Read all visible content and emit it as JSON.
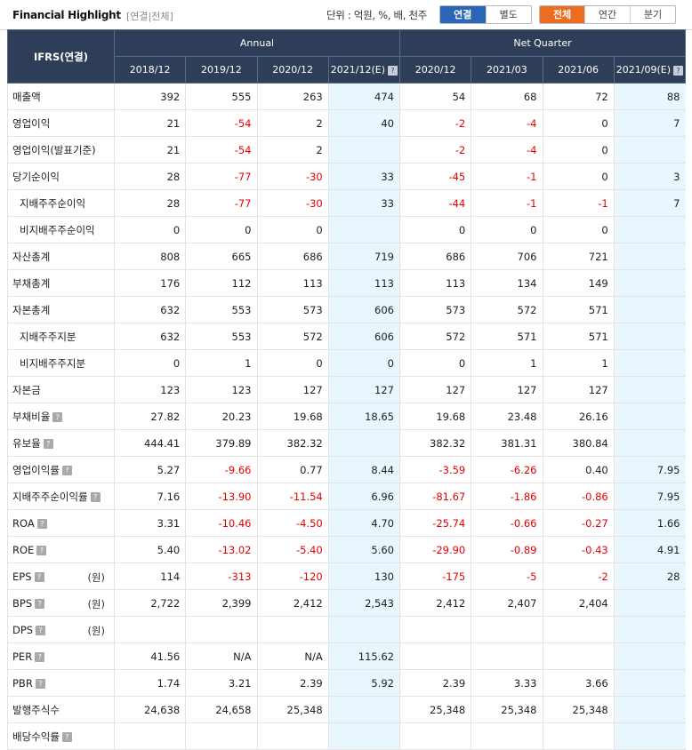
{
  "toolbar": {
    "title": "Financial Highlight",
    "subtitle": "[연결|전체]",
    "unit_label": "단위 : 억원, %, 배, 천주",
    "consol_options": [
      "연결",
      "별도"
    ],
    "period_options": [
      "전체",
      "연간",
      "분기"
    ]
  },
  "header": {
    "ifrs": "IFRS(연결)",
    "annual": "Annual",
    "quarter": "Net Quarter",
    "columns": [
      "2018/12",
      "2019/12",
      "2020/12",
      "2021/12(E)",
      "2020/12",
      "2021/03",
      "2021/06",
      "2021/09(E)"
    ],
    "help_icon": "?"
  },
  "rows": [
    {
      "label": "매출액",
      "values": [
        "392",
        "555",
        "263",
        "474",
        "54",
        "68",
        "72",
        "88"
      ]
    },
    {
      "label": "영업이익",
      "values": [
        "21",
        "-54",
        "2",
        "40",
        "-2",
        "-4",
        "0",
        "7"
      ]
    },
    {
      "label": "영업이익(발표기준)",
      "values": [
        "21",
        "-54",
        "2",
        "",
        "-2",
        "-4",
        "0",
        ""
      ]
    },
    {
      "label": "당기순이익",
      "values": [
        "28",
        "-77",
        "-30",
        "33",
        "-45",
        "-1",
        "0",
        "3"
      ]
    },
    {
      "label": "지배주주순이익",
      "sub": true,
      "values": [
        "28",
        "-77",
        "-30",
        "33",
        "-44",
        "-1",
        "-1",
        "7"
      ]
    },
    {
      "label": "비지배주주순이익",
      "sub": true,
      "values": [
        "0",
        "0",
        "0",
        "",
        "0",
        "0",
        "0",
        ""
      ]
    },
    {
      "label": "자산총계",
      "values": [
        "808",
        "665",
        "686",
        "719",
        "686",
        "706",
        "721",
        ""
      ]
    },
    {
      "label": "부채총계",
      "values": [
        "176",
        "112",
        "113",
        "113",
        "113",
        "134",
        "149",
        ""
      ]
    },
    {
      "label": "자본총계",
      "values": [
        "632",
        "553",
        "573",
        "606",
        "573",
        "572",
        "571",
        ""
      ]
    },
    {
      "label": "지배주주지분",
      "sub": true,
      "values": [
        "632",
        "553",
        "572",
        "606",
        "572",
        "571",
        "571",
        ""
      ]
    },
    {
      "label": "비지배주주지분",
      "sub": true,
      "values": [
        "0",
        "1",
        "0",
        "0",
        "0",
        "1",
        "1",
        ""
      ]
    },
    {
      "label": "자본금",
      "values": [
        "123",
        "123",
        "127",
        "127",
        "127",
        "127",
        "127",
        ""
      ]
    },
    {
      "label": "부채비율",
      "help": true,
      "values": [
        "27.82",
        "20.23",
        "19.68",
        "18.65",
        "19.68",
        "23.48",
        "26.16",
        ""
      ]
    },
    {
      "label": "유보율",
      "help": true,
      "values": [
        "444.41",
        "379.89",
        "382.32",
        "",
        "382.32",
        "381.31",
        "380.84",
        ""
      ]
    },
    {
      "label": "영업이익률",
      "help": true,
      "values": [
        "5.27",
        "-9.66",
        "0.77",
        "8.44",
        "-3.59",
        "-6.26",
        "0.40",
        "7.95"
      ]
    },
    {
      "label": "지배주주순이익률",
      "help": true,
      "values": [
        "7.16",
        "-13.90",
        "-11.54",
        "6.96",
        "-81.67",
        "-1.86",
        "-0.86",
        "7.95"
      ]
    },
    {
      "label": "ROA",
      "help": true,
      "values": [
        "3.31",
        "-10.46",
        "-4.50",
        "4.70",
        "-25.74",
        "-0.66",
        "-0.27",
        "1.66"
      ]
    },
    {
      "label": "ROE",
      "help": true,
      "values": [
        "5.40",
        "-13.02",
        "-5.40",
        "5.60",
        "-29.90",
        "-0.89",
        "-0.43",
        "4.91"
      ]
    },
    {
      "label": "EPS",
      "help": true,
      "unit": "(원)",
      "values": [
        "114",
        "-313",
        "-120",
        "130",
        "-175",
        "-5",
        "-2",
        "28"
      ]
    },
    {
      "label": "BPS",
      "help": true,
      "unit": "(원)",
      "values": [
        "2,722",
        "2,399",
        "2,412",
        "2,543",
        "2,412",
        "2,407",
        "2,404",
        ""
      ]
    },
    {
      "label": "DPS",
      "help": true,
      "unit": "(원)",
      "values": [
        "",
        "",
        "",
        "",
        "",
        "",
        "",
        ""
      ]
    },
    {
      "label": "PER",
      "help": true,
      "values": [
        "41.56",
        "N/A",
        "N/A",
        "115.62",
        "",
        "",
        "",
        ""
      ]
    },
    {
      "label": "PBR",
      "help": true,
      "values": [
        "1.74",
        "3.21",
        "2.39",
        "5.92",
        "2.39",
        "3.33",
        "3.66",
        ""
      ]
    },
    {
      "label": "발행주식수",
      "values": [
        "24,638",
        "24,658",
        "25,348",
        "",
        "25,348",
        "25,348",
        "25,348",
        ""
      ]
    },
    {
      "label": "배당수익률",
      "help": true,
      "values": [
        "",
        "",
        "",
        "",
        "",
        "",
        "",
        ""
      ]
    }
  ],
  "colors": {
    "header_bg": "#2e3e58",
    "estimate_bg": "#eaf6fd",
    "negative": "#e60000",
    "consol_active": "#2a66b5",
    "period_active": "#ec6c20"
  }
}
